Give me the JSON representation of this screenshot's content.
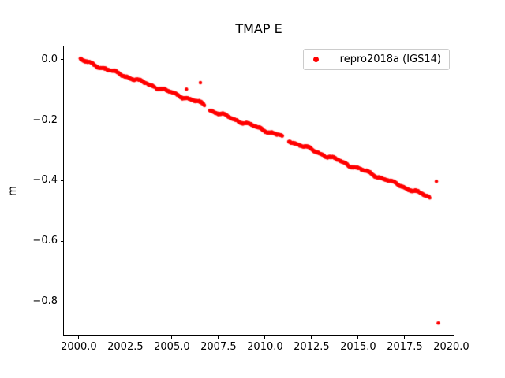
{
  "chart_data": {
    "type": "scatter",
    "title": "TMAP E",
    "xlabel": "",
    "ylabel": "m",
    "grid": false,
    "xlim": [
      1999.2,
      2020.13
    ],
    "ylim": [
      -0.912,
      0.044
    ],
    "xticks": {
      "values": [
        2000.0,
        2002.5,
        2005.0,
        2007.5,
        2010.0,
        2012.5,
        2015.0,
        2017.5,
        2020.0
      ],
      "labels": [
        "2000.0",
        "2002.5",
        "2005.0",
        "2007.5",
        "2010.0",
        "2012.5",
        "2015.0",
        "2017.5",
        "2020.0"
      ]
    },
    "yticks": {
      "values": [
        0.0,
        -0.2,
        -0.4,
        -0.6,
        -0.8
      ],
      "labels": [
        "0.0",
        "−0.2",
        "−0.4",
        "−0.6",
        "−0.8"
      ]
    },
    "legend": {
      "position": "upper right",
      "entries": [
        {
          "label": "repro2018a (IGS14)",
          "marker": "circle",
          "color": "#ff0000"
        }
      ]
    },
    "series": [
      {
        "name": "repro2018a (IGS14)",
        "color": "#ff0000",
        "marker": "circle",
        "marker_radius_px": 2.2,
        "trend_segments": [
          {
            "x_start": 2000.08,
            "x_end": 2006.74,
            "y_start": 0.0,
            "y_end": -0.148,
            "points": 330
          },
          {
            "x_start": 2007.03,
            "x_end": 2010.93,
            "y_start": -0.167,
            "y_end": -0.254,
            "points": 195
          },
          {
            "x_start": 2011.27,
            "x_end": 2018.85,
            "y_start": -0.267,
            "y_end": -0.455,
            "points": 380
          }
        ],
        "outliers": [
          [
            2005.78,
            -0.097
          ],
          [
            2006.53,
            -0.076
          ],
          [
            2019.2,
            -0.402
          ],
          [
            2019.3,
            -0.871
          ]
        ]
      }
    ]
  }
}
